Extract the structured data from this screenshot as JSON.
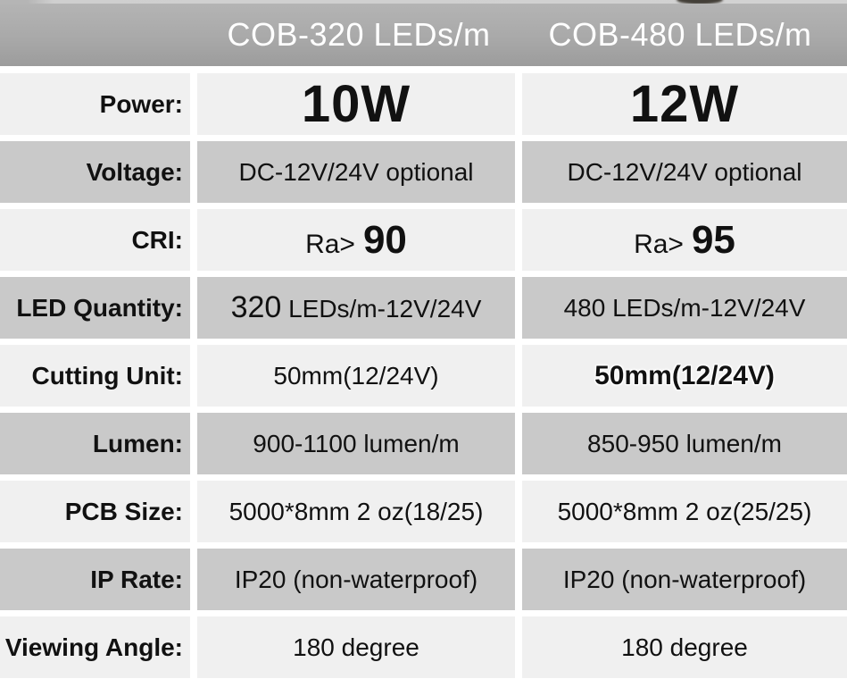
{
  "colors": {
    "header_bg_top": "#b4b4b4",
    "header_bg_bottom": "#9c9c9c",
    "header_text": "#ffffff",
    "row_light": "#f0f0f0",
    "row_gray": "#c9c9c9",
    "text": "#111111"
  },
  "header": {
    "col1": "COB-320 LEDs/m",
    "col2": "COB-480 LEDs/m"
  },
  "rows": [
    {
      "label": "Power:",
      "col1": "10W",
      "col2": "12W"
    },
    {
      "label": "Voltage:",
      "col1": "DC-12V/24V optional",
      "col2": "DC-12V/24V optional"
    },
    {
      "label": "CRI:",
      "col1": {
        "prefix": "Ra>",
        "value": "90"
      },
      "col2": {
        "prefix": "Ra>",
        "value": "95"
      }
    },
    {
      "label": "LED Quantity:",
      "col1": {
        "num": "320",
        "rest": " LEDs/m-12V/24V"
      },
      "col2": "480 LEDs/m-12V/24V"
    },
    {
      "label": "Cutting Unit:",
      "col1": "50mm(12/24V)",
      "col2": "50mm(12/24V)"
    },
    {
      "label": "Lumen:",
      "col1": "900-1100 lumen/m",
      "col2": "850-950 lumen/m"
    },
    {
      "label": "PCB Size:",
      "col1": "5000*8mm 2 oz(18/25)",
      "col2": "5000*8mm 2 oz(25/25)"
    },
    {
      "label": "IP Rate:",
      "col1": "IP20 (non-waterproof)",
      "col2": "IP20 (non-waterproof)"
    },
    {
      "label": "Viewing Angle:",
      "col1": "180 degree",
      "col2": "180 degree"
    }
  ]
}
